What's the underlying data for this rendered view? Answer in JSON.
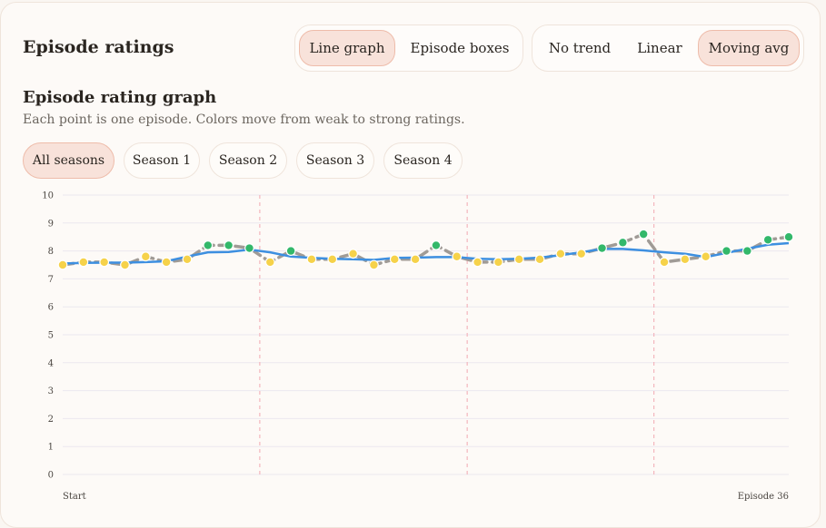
{
  "header": {
    "title": "Episode ratings",
    "view_toggle": [
      "Line graph",
      "Episode boxes"
    ],
    "view_active": 0,
    "trend_toggle": [
      "No trend",
      "Linear",
      "Moving avg"
    ],
    "trend_active": 2
  },
  "section": {
    "title": "Episode rating graph",
    "description": "Each point is one episode. Colors move from weak to strong ratings."
  },
  "season_filters": [
    "All seasons",
    "Season 1",
    "Season 2",
    "Season 3",
    "Season 4"
  ],
  "season_active": 0,
  "colors": {
    "weak": "#f6d24a",
    "strong": "#33b86a",
    "trend": "#3d8fe0",
    "line": "#a09b96",
    "divider": "#f3b6bd",
    "grid": "#ece8ef"
  },
  "chart_data": {
    "type": "line",
    "x_start_label": "Start",
    "x_end_label": "Episode 36",
    "ylim": [
      0,
      10
    ],
    "yticks": [
      "0",
      "1",
      "2",
      "3",
      "4",
      "5",
      "6",
      "7",
      "8",
      "9",
      "10"
    ],
    "season_breaks_after_episode": [
      10,
      20,
      29
    ],
    "series": [
      {
        "values": [
          7.5,
          7.6,
          7.6,
          7.5,
          7.8,
          7.6,
          7.7,
          8.2,
          8.2,
          8.1,
          7.6,
          8.0,
          7.7,
          7.7,
          7.9,
          7.5,
          7.7,
          7.7,
          8.2,
          7.8,
          7.6,
          7.6,
          7.7,
          7.7,
          7.9,
          7.9,
          8.1,
          8.3,
          8.6,
          7.6,
          7.7,
          7.8,
          8.0,
          8.0,
          8.4,
          8.5
        ]
      },
      {
        "values": [
          7.55,
          7.57,
          7.58,
          7.58,
          7.6,
          7.63,
          7.8,
          7.95,
          7.96,
          8.05,
          7.95,
          7.8,
          7.75,
          7.72,
          7.7,
          7.68,
          7.75,
          7.76,
          7.78,
          7.78,
          7.72,
          7.7,
          7.72,
          7.76,
          7.85,
          7.95,
          8.07,
          8.07,
          8.02,
          7.95,
          7.9,
          7.78,
          7.93,
          8.08,
          8.22,
          8.28
        ]
      }
    ]
  }
}
